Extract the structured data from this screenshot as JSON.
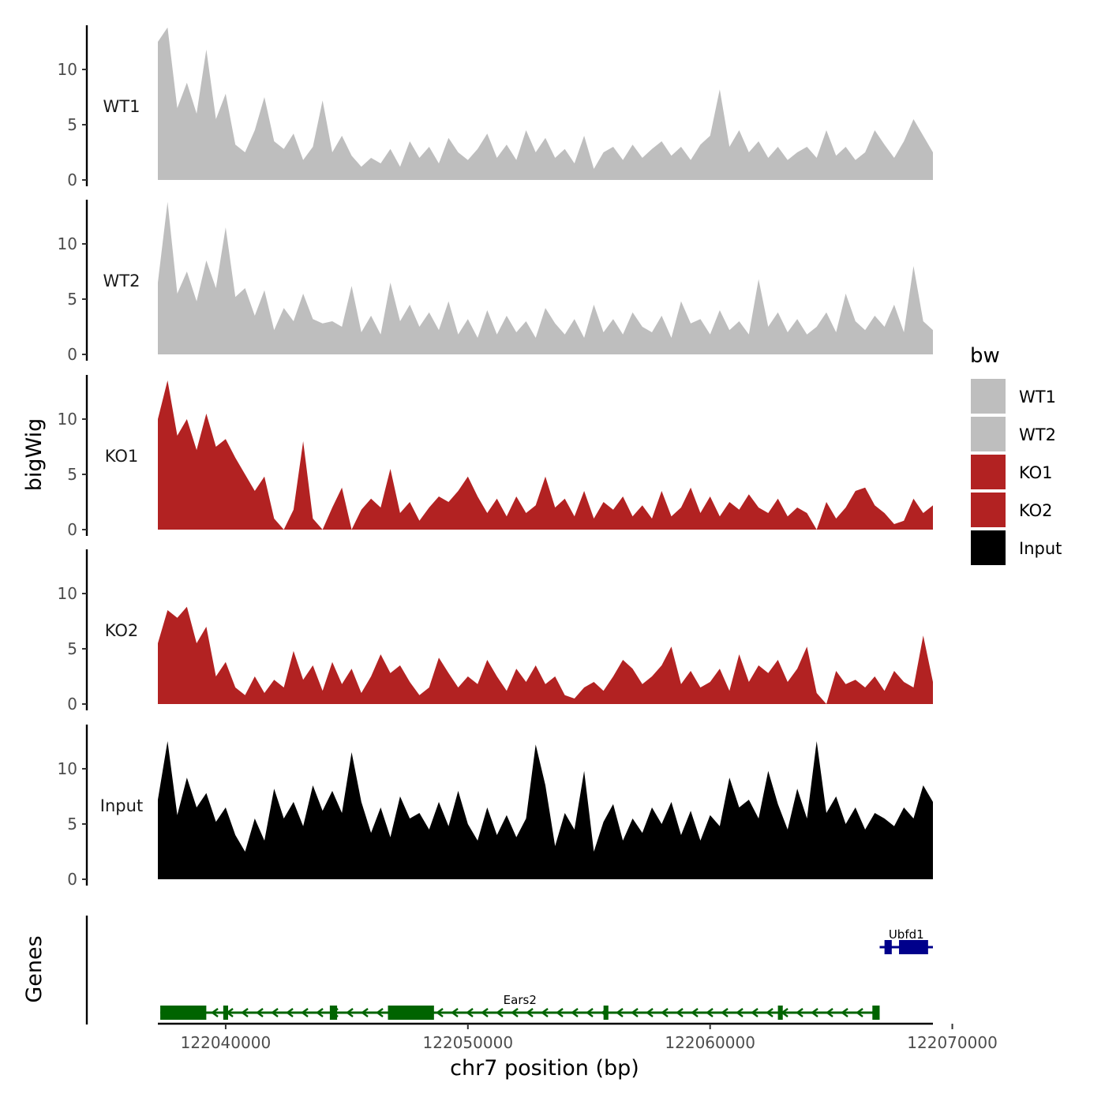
{
  "chart_data": {
    "type": "area",
    "title": "",
    "ylabel": "bigWig",
    "genes_label": "Genes",
    "xlabel": "chr7 position (bp)",
    "xlim": [
      122037200,
      122069200
    ],
    "ylim": [
      0,
      14
    ],
    "ytick_values": [
      0,
      5,
      10
    ],
    "ytick_labels": [
      "0",
      "5",
      "10"
    ],
    "xtick_values": [
      122040000,
      122050000,
      122060000,
      122070000
    ],
    "xtick_labels": [
      "122040000",
      "122050000",
      "122060000",
      "122070000"
    ],
    "legend": {
      "title": "bw",
      "position": "right",
      "entries": [
        {
          "label": "WT1",
          "color": "#bebebe"
        },
        {
          "label": "WT2",
          "color": "#bebebe"
        },
        {
          "label": "KO1",
          "color": "#b22222"
        },
        {
          "label": "KO2",
          "color": "#b22222"
        },
        {
          "label": "Input",
          "color": "#000000"
        }
      ]
    },
    "tracks": [
      {
        "name": "WT1",
        "color": "#bebebe",
        "x": [
          122037200,
          122037600,
          122038000,
          122038400,
          122038800,
          122039200,
          122039600,
          122040000,
          122040400,
          122040800,
          122041200,
          122041600,
          122042000,
          122042400,
          122042800,
          122043200,
          122043600,
          122044000,
          122044400,
          122044800,
          122045200,
          122045600,
          122046000,
          122046400,
          122046800,
          122047200,
          122047600,
          122048000,
          122048400,
          122048800,
          122049200,
          122049600,
          122050000,
          122050400,
          122050800,
          122051200,
          122051600,
          122052000,
          122052400,
          122052800,
          122053200,
          122053600,
          122054000,
          122054400,
          122054800,
          122055200,
          122055600,
          122056000,
          122056400,
          122056800,
          122057200,
          122057600,
          122058000,
          122058400,
          122058800,
          122059200,
          122059600,
          122060000,
          122060400,
          122060800,
          122061200,
          122061600,
          122062000,
          122062400,
          122062800,
          122063200,
          122063600,
          122064000,
          122064400,
          122064800,
          122065200,
          122065600,
          122066000,
          122066400,
          122066800,
          122067200,
          122067600,
          122068000,
          122068400,
          122068800,
          122069200
        ],
        "y": [
          12.5,
          13.8,
          6.5,
          8.8,
          6.0,
          11.8,
          5.5,
          7.8,
          3.2,
          2.5,
          4.5,
          7.5,
          3.5,
          2.8,
          4.2,
          1.8,
          3.0,
          7.2,
          2.5,
          4.0,
          2.2,
          1.2,
          2.0,
          1.5,
          2.8,
          1.2,
          3.5,
          2.0,
          3.0,
          1.5,
          3.8,
          2.5,
          1.8,
          2.8,
          4.2,
          2.0,
          3.2,
          1.8,
          4.5,
          2.5,
          3.8,
          2.0,
          2.8,
          1.5,
          4.0,
          1.0,
          2.5,
          3.0,
          1.8,
          3.2,
          2.0,
          2.8,
          3.5,
          2.2,
          3.0,
          1.8,
          3.2,
          4.0,
          8.2,
          3.0,
          4.5,
          2.5,
          3.5,
          2.0,
          3.0,
          1.8,
          2.5,
          3.0,
          2.0,
          4.5,
          2.2,
          3.0,
          1.8,
          2.5,
          4.5,
          3.2,
          2.0,
          3.5,
          5.5,
          4.0,
          2.5
        ]
      },
      {
        "name": "WT2",
        "color": "#bebebe",
        "x": [
          122037200,
          122037600,
          122038000,
          122038400,
          122038800,
          122039200,
          122039600,
          122040000,
          122040400,
          122040800,
          122041200,
          122041600,
          122042000,
          122042400,
          122042800,
          122043200,
          122043600,
          122044000,
          122044400,
          122044800,
          122045200,
          122045600,
          122046000,
          122046400,
          122046800,
          122047200,
          122047600,
          122048000,
          122048400,
          122048800,
          122049200,
          122049600,
          122050000,
          122050400,
          122050800,
          122051200,
          122051600,
          122052000,
          122052400,
          122052800,
          122053200,
          122053600,
          122054000,
          122054400,
          122054800,
          122055200,
          122055600,
          122056000,
          122056400,
          122056800,
          122057200,
          122057600,
          122058000,
          122058400,
          122058800,
          122059200,
          122059600,
          122060000,
          122060400,
          122060800,
          122061200,
          122061600,
          122062000,
          122062400,
          122062800,
          122063200,
          122063600,
          122064000,
          122064400,
          122064800,
          122065200,
          122065600,
          122066000,
          122066400,
          122066800,
          122067200,
          122067600,
          122068000,
          122068400,
          122068800,
          122069200
        ],
        "y": [
          6.5,
          13.8,
          5.5,
          7.5,
          4.8,
          8.5,
          6.0,
          11.5,
          5.2,
          6.0,
          3.5,
          5.8,
          2.2,
          4.2,
          3.0,
          5.5,
          3.2,
          2.8,
          3.0,
          2.5,
          6.2,
          2.0,
          3.5,
          1.8,
          6.5,
          3.0,
          4.5,
          2.5,
          3.8,
          2.2,
          4.8,
          1.8,
          3.2,
          1.5,
          4.0,
          1.8,
          3.5,
          2.0,
          3.0,
          1.5,
          4.2,
          2.8,
          1.8,
          3.2,
          1.5,
          4.5,
          2.0,
          3.2,
          1.8,
          3.8,
          2.5,
          2.0,
          3.5,
          1.5,
          4.8,
          2.8,
          3.2,
          1.8,
          4.0,
          2.2,
          3.0,
          1.8,
          6.8,
          2.5,
          3.8,
          2.0,
          3.2,
          1.8,
          2.5,
          3.8,
          2.0,
          5.5,
          3.0,
          2.2,
          3.5,
          2.5,
          4.5,
          2.0,
          8.0,
          3.0,
          2.2
        ]
      },
      {
        "name": "KO1",
        "color": "#b22222",
        "x": [
          122037200,
          122037600,
          122038000,
          122038400,
          122038800,
          122039200,
          122039600,
          122040000,
          122040400,
          122040800,
          122041200,
          122041600,
          122042000,
          122042400,
          122042800,
          122043200,
          122043600,
          122044000,
          122044400,
          122044800,
          122045200,
          122045600,
          122046000,
          122046400,
          122046800,
          122047200,
          122047600,
          122048000,
          122048400,
          122048800,
          122049200,
          122049600,
          122050000,
          122050400,
          122050800,
          122051200,
          122051600,
          122052000,
          122052400,
          122052800,
          122053200,
          122053600,
          122054000,
          122054400,
          122054800,
          122055200,
          122055600,
          122056000,
          122056400,
          122056800,
          122057200,
          122057600,
          122058000,
          122058400,
          122058800,
          122059200,
          122059600,
          122060000,
          122060400,
          122060800,
          122061200,
          122061600,
          122062000,
          122062400,
          122062800,
          122063200,
          122063600,
          122064000,
          122064400,
          122064800,
          122065200,
          122065600,
          122066000,
          122066400,
          122066800,
          122067200,
          122067600,
          122068000,
          122068400,
          122068800,
          122069200
        ],
        "y": [
          10.0,
          13.5,
          8.5,
          10.0,
          7.2,
          10.5,
          7.5,
          8.2,
          6.5,
          5.0,
          3.5,
          4.8,
          1.0,
          0,
          1.8,
          8.0,
          1.0,
          0,
          2.0,
          3.8,
          0,
          1.8,
          2.8,
          2.0,
          5.5,
          1.5,
          2.5,
          0.8,
          2.0,
          3.0,
          2.5,
          3.5,
          4.8,
          3.0,
          1.5,
          2.8,
          1.2,
          3.0,
          1.5,
          2.2,
          4.8,
          2.0,
          2.8,
          1.2,
          3.5,
          1.0,
          2.5,
          1.8,
          3.0,
          1.2,
          2.2,
          1.0,
          3.5,
          1.2,
          2.0,
          3.8,
          1.5,
          3.0,
          1.2,
          2.5,
          1.8,
          3.2,
          2.0,
          1.5,
          2.8,
          1.2,
          2.0,
          1.5,
          0,
          2.5,
          1.0,
          2.0,
          3.5,
          3.8,
          2.2,
          1.5,
          0.5,
          0.8,
          2.8,
          1.5,
          2.2
        ]
      },
      {
        "name": "KO2",
        "color": "#b22222",
        "x": [
          122037200,
          122037600,
          122038000,
          122038400,
          122038800,
          122039200,
          122039600,
          122040000,
          122040400,
          122040800,
          122041200,
          122041600,
          122042000,
          122042400,
          122042800,
          122043200,
          122043600,
          122044000,
          122044400,
          122044800,
          122045200,
          122045600,
          122046000,
          122046400,
          122046800,
          122047200,
          122047600,
          122048000,
          122048400,
          122048800,
          122049200,
          122049600,
          122050000,
          122050400,
          122050800,
          122051200,
          122051600,
          122052000,
          122052400,
          122052800,
          122053200,
          122053600,
          122054000,
          122054400,
          122054800,
          122055200,
          122055600,
          122056000,
          122056400,
          122056800,
          122057200,
          122057600,
          122058000,
          122058400,
          122058800,
          122059200,
          122059600,
          122060000,
          122060400,
          122060800,
          122061200,
          122061600,
          122062000,
          122062400,
          122062800,
          122063200,
          122063600,
          122064000,
          122064400,
          122064800,
          122065200,
          122065600,
          122066000,
          122066400,
          122066800,
          122067200,
          122067600,
          122068000,
          122068400,
          122068800,
          122069200
        ],
        "y": [
          5.5,
          8.5,
          7.8,
          8.8,
          5.5,
          7.0,
          2.5,
          3.8,
          1.5,
          0.8,
          2.5,
          1.0,
          2.2,
          1.5,
          4.8,
          2.2,
          3.5,
          1.2,
          3.8,
          1.8,
          3.2,
          1.0,
          2.5,
          4.5,
          2.8,
          3.5,
          2.0,
          0.8,
          1.5,
          4.2,
          2.8,
          1.5,
          2.5,
          1.8,
          4.0,
          2.5,
          1.2,
          3.2,
          2.0,
          3.5,
          1.8,
          2.5,
          0.8,
          0.5,
          1.5,
          2.0,
          1.2,
          2.5,
          4.0,
          3.2,
          1.8,
          2.5,
          3.5,
          5.2,
          1.8,
          3.0,
          1.5,
          2.0,
          3.2,
          1.2,
          4.5,
          2.0,
          3.5,
          2.8,
          4.0,
          2.0,
          3.2,
          5.2,
          1.0,
          0,
          3.0,
          1.8,
          2.2,
          1.5,
          2.5,
          1.2,
          3.0,
          2.0,
          1.5,
          6.2,
          2.0
        ]
      },
      {
        "name": "Input",
        "color": "#000000",
        "x": [
          122037200,
          122037600,
          122038000,
          122038400,
          122038800,
          122039200,
          122039600,
          122040000,
          122040400,
          122040800,
          122041200,
          122041600,
          122042000,
          122042400,
          122042800,
          122043200,
          122043600,
          122044000,
          122044400,
          122044800,
          122045200,
          122045600,
          122046000,
          122046400,
          122046800,
          122047200,
          122047600,
          122048000,
          122048400,
          122048800,
          122049200,
          122049600,
          122050000,
          122050400,
          122050800,
          122051200,
          122051600,
          122052000,
          122052400,
          122052800,
          122053200,
          122053600,
          122054000,
          122054400,
          122054800,
          122055200,
          122055600,
          122056000,
          122056400,
          122056800,
          122057200,
          122057600,
          122058000,
          122058400,
          122058800,
          122059200,
          122059600,
          122060000,
          122060400,
          122060800,
          122061200,
          122061600,
          122062000,
          122062400,
          122062800,
          122063200,
          122063600,
          122064000,
          122064400,
          122064800,
          122065200,
          122065600,
          122066000,
          122066400,
          122066800,
          122067200,
          122067600,
          122068000,
          122068400,
          122068800,
          122069200
        ],
        "y": [
          7.2,
          12.5,
          5.8,
          9.2,
          6.5,
          7.8,
          5.2,
          6.5,
          4.0,
          2.5,
          5.5,
          3.5,
          8.2,
          5.5,
          7.0,
          4.8,
          8.5,
          6.2,
          8.0,
          6.0,
          11.5,
          7.0,
          4.2,
          6.5,
          3.8,
          7.5,
          5.5,
          6.0,
          4.5,
          7.0,
          4.8,
          8.0,
          5.0,
          3.5,
          6.5,
          4.0,
          5.8,
          3.8,
          5.5,
          12.2,
          8.5,
          3.0,
          6.0,
          4.5,
          9.8,
          2.5,
          5.2,
          6.8,
          3.5,
          5.5,
          4.2,
          6.5,
          5.0,
          7.0,
          4.0,
          6.2,
          3.5,
          5.8,
          4.8,
          9.2,
          6.5,
          7.2,
          5.5,
          9.8,
          6.8,
          4.5,
          8.2,
          5.5,
          12.5,
          6.0,
          7.5,
          5.0,
          6.5,
          4.5,
          6.0,
          5.5,
          4.8,
          6.5,
          5.5,
          8.5,
          7.0
        ]
      }
    ],
    "genes": [
      {
        "name": "Ears2",
        "strand": "-",
        "color": "#006400",
        "start": 122037300,
        "end": 122067000,
        "exons": [
          [
            122037300,
            122039200
          ],
          [
            122039900,
            122040100
          ],
          [
            122044300,
            122044600
          ],
          [
            122046700,
            122048600
          ],
          [
            122055600,
            122055800
          ],
          [
            122062800,
            122063000
          ],
          [
            122066700,
            122067000
          ]
        ]
      },
      {
        "name": "Ubfd1",
        "strand": "+",
        "color": "#00008b",
        "start": 122067000,
        "end": 122069200,
        "exons": [
          [
            122067200,
            122067500
          ],
          [
            122067800,
            122069000
          ]
        ]
      }
    ]
  }
}
